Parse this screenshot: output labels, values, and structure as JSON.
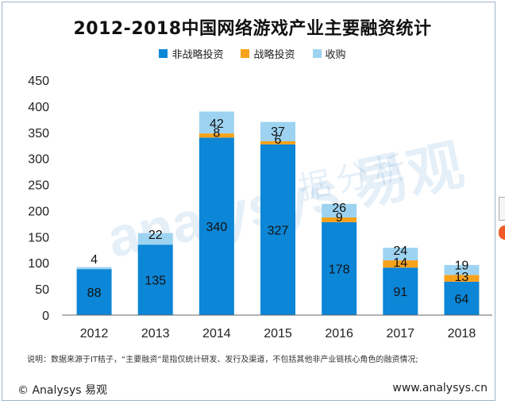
{
  "chart_data": {
    "type": "bar",
    "stacked": true,
    "title": "2012-2018中国网络游戏产业主要融资统计",
    "categories": [
      "2012",
      "2013",
      "2014",
      "2015",
      "2016",
      "2017",
      "2018"
    ],
    "series": [
      {
        "name": "非战略投资",
        "color": "#0c86d6",
        "values": [
          88,
          135,
          340,
          327,
          178,
          91,
          64
        ]
      },
      {
        "name": "战略投资",
        "color": "#f7a21b",
        "values": [
          0,
          0,
          8,
          6,
          9,
          14,
          13
        ]
      },
      {
        "name": "收购",
        "color": "#9dd3f1",
        "values": [
          4,
          22,
          42,
          37,
          26,
          24,
          19
        ]
      }
    ],
    "ylim": [
      0,
      450
    ],
    "yticks": [
      "0",
      "50",
      "100",
      "150",
      "200",
      "250",
      "300",
      "350",
      "400",
      "450"
    ],
    "legend_position": "top-center",
    "grid": false
  },
  "watermark": {
    "brand": "analysys 易观",
    "tagline": "数据分析"
  },
  "note": "说明：数据来源于IT桔子，“主要融资”是指仅统计研发、发行及渠道，不包括其他非产业链核心角色的融资情况;",
  "footer": {
    "left": "© Analysys 易观",
    "right": "www.analysys.cn"
  }
}
